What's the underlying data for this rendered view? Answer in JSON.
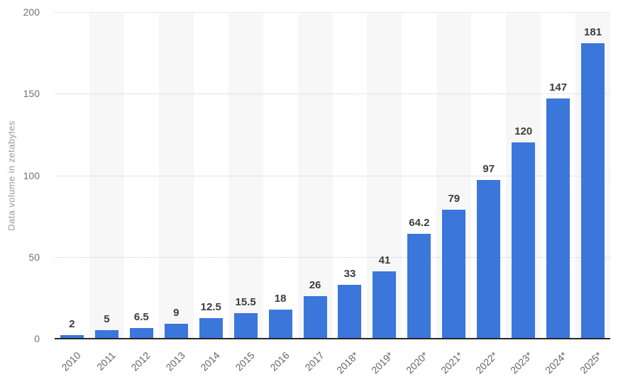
{
  "chart_data": {
    "type": "bar",
    "title": "",
    "xlabel": "",
    "ylabel": "Data volume in zetabytes",
    "categories": [
      "2010",
      "2011",
      "2012",
      "2013",
      "2014",
      "2015",
      "2016",
      "2017",
      "2018*",
      "2019*",
      "2020*",
      "2021*",
      "2022*",
      "2023*",
      "2024*",
      "2025*"
    ],
    "values": [
      2,
      5,
      6.5,
      9,
      12.5,
      15.5,
      18,
      26,
      33,
      41,
      64.2,
      79,
      97,
      120,
      147,
      181
    ],
    "value_labels": [
      "2",
      "5",
      "6.5",
      "9",
      "12.5",
      "15.5",
      "18",
      "26",
      "33",
      "41",
      "64.2",
      "79",
      "97",
      "120",
      "147",
      "181"
    ],
    "ylim": [
      0,
      200
    ],
    "yticks": [
      0,
      50,
      100,
      150,
      200
    ],
    "grid": "horizontal-dotted",
    "legend": "none",
    "background_stripes": "alternating columns (2011, 2013, 2015, 2017, 2019*, 2021*, 2023*, 2025*)"
  },
  "colors": {
    "bar": "#3b76db",
    "stripe": "#f7f7f7",
    "gridline": "#cdcdcd",
    "axis_line": "#262626",
    "tick_label": "#737373",
    "x_label": "#666666",
    "value_label": "#3d3d3d",
    "y_axis_title": "#999999",
    "background": "#ffffff"
  }
}
